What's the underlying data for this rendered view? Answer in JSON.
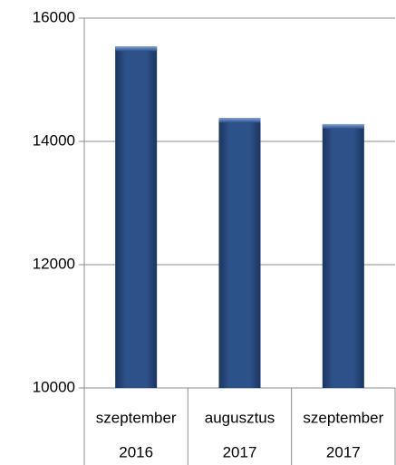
{
  "chart_data": {
    "type": "bar",
    "categories": [
      [
        "szeptember",
        "2016"
      ],
      [
        "augusztus",
        "2017"
      ],
      [
        "szeptember",
        "2017"
      ]
    ],
    "values": [
      15540,
      14380,
      14280
    ],
    "color": "#2a4d80",
    "ylim": [
      10000,
      16000
    ],
    "yticks": [
      10000,
      12000,
      14000,
      16000
    ],
    "grid": true
  }
}
